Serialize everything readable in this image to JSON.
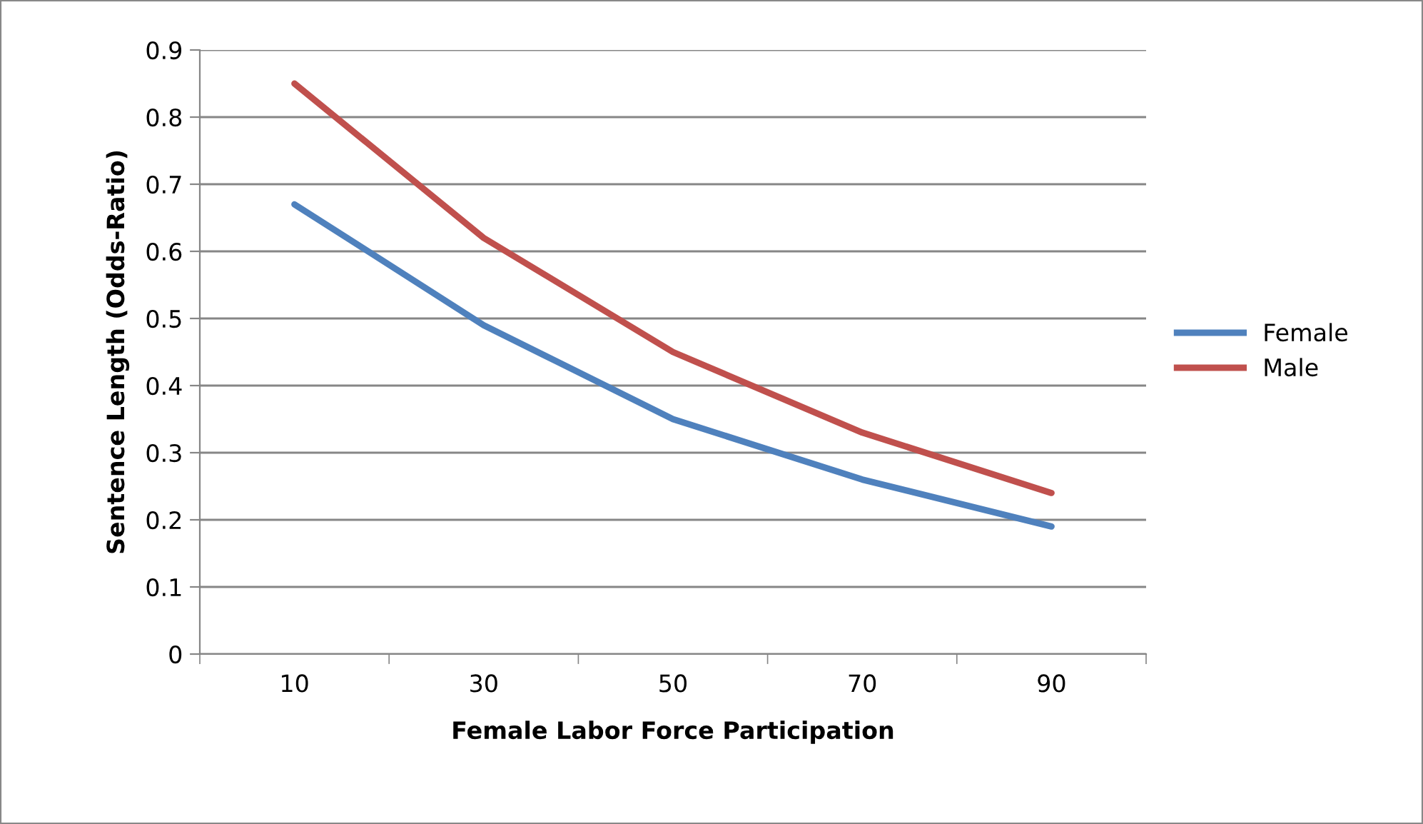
{
  "chart_data": {
    "type": "line",
    "xlabel": "Female Labor Force Participation",
    "ylabel": "Sentence Length (Odds-Ratio)",
    "categories": [
      "10",
      "30",
      "50",
      "70",
      "90"
    ],
    "series": [
      {
        "name": "Female",
        "color": "#4f81bd",
        "values": [
          0.67,
          0.49,
          0.35,
          0.26,
          0.19
        ]
      },
      {
        "name": "Male",
        "color": "#c0504d",
        "values": [
          0.85,
          0.62,
          0.45,
          0.33,
          0.24
        ]
      }
    ],
    "ylim": [
      0,
      0.9
    ],
    "yticks": [
      0,
      0.1,
      0.2,
      0.3,
      0.4,
      0.5,
      0.6,
      0.7,
      0.8,
      0.9
    ],
    "grid": "y",
    "legend": "right",
    "line_style": "solid",
    "marker": "none"
  }
}
